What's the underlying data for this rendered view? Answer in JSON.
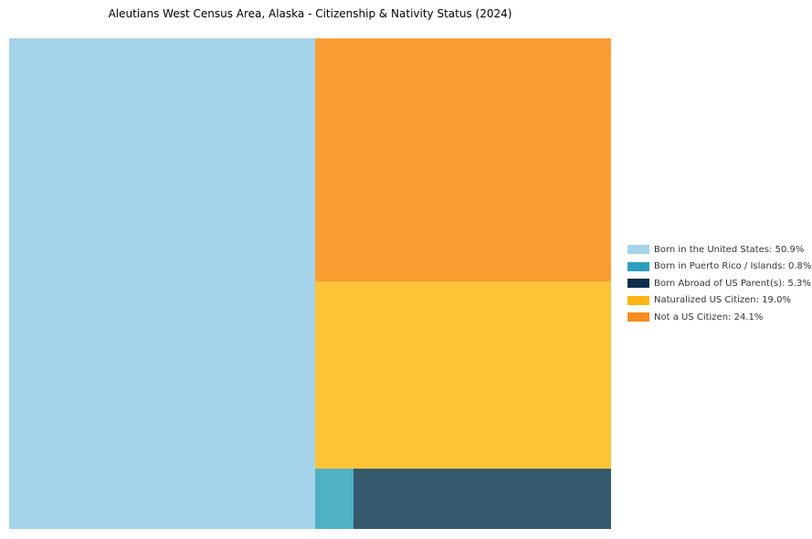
{
  "page": {
    "background_color": "#ffffff"
  },
  "chart_data": {
    "type": "treemap",
    "title": "Aleutians West Census Area, Alaska - Citizenship & Nativity Status (2024)",
    "units": "%",
    "legend_position": "right",
    "grid": false,
    "categories": [
      {
        "id": "born-in-us",
        "label": "Born in the United States",
        "value_pct": 50.9,
        "legend_label": "Born in the United States: 50.9%",
        "legend_color": "#A5D4EA",
        "tile_color": "#A5D3EA",
        "rect": {
          "x": 0.0,
          "y": 0.0,
          "w": 0.5083,
          "h": 1.0
        }
      },
      {
        "id": "born-puerto-rico-islands",
        "label": "Born in Puerto Rico / Islands",
        "value_pct": 0.8,
        "legend_label": "Born in Puerto Rico / Islands: 0.8%",
        "legend_color": "#2E9EBD",
        "tile_color": "#4FB0C6",
        "rect": {
          "x": 0.5083,
          "y": 0.8771,
          "w": 0.0637,
          "h": 0.1229
        }
      },
      {
        "id": "born-abroad-us-parents",
        "label": "Born Abroad of US Parent(s)",
        "value_pct": 5.3,
        "legend_label": "Born Abroad of US Parent(s): 5.3%",
        "legend_color": "#0E2D4C",
        "tile_color": "#355A6E",
        "rect": {
          "x": 0.5721,
          "y": 0.8771,
          "w": 0.4279,
          "h": 0.1229
        }
      },
      {
        "id": "naturalized-us-citizen",
        "label": "Naturalized US Citizen",
        "value_pct": 19.0,
        "legend_label": "Naturalized US Citizen: 19.0%",
        "legend_color": "#FCB614",
        "tile_color": "#FDC437",
        "rect": {
          "x": 0.5083,
          "y": 0.4953,
          "w": 0.4917,
          "h": 0.3818
        }
      },
      {
        "id": "not-us-citizen",
        "label": "Not a US Citizen",
        "value_pct": 24.1,
        "legend_label": "Not a US Citizen: 24.1%",
        "legend_color": "#F78C1E",
        "tile_color": "#FA9E34",
        "rect": {
          "x": 0.5083,
          "y": 0.0,
          "w": 0.4917,
          "h": 0.4953
        }
      }
    ]
  }
}
